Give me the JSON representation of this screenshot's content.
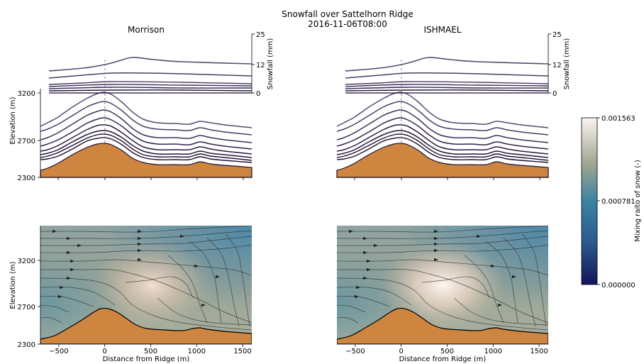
{
  "figure": {
    "title_line1": "Snowfall over Sattelhorn Ridge",
    "title_line2": "2016-11-06T08:00"
  },
  "colors": {
    "terrain": "#cd853f",
    "line": "#3d2a5c",
    "line_light": "#5a4a78",
    "low": "#131459",
    "mid": "#3b83a3",
    "high": "#fcf3ee"
  },
  "colorbar": {
    "label": "Mixing raito of snow (-)",
    "ticks": [
      "0.001563",
      "0.000781",
      "0.000000"
    ],
    "range": [
      0.0,
      0.001563
    ]
  },
  "chart_data": [
    {
      "type": "line",
      "panel": "Morrison contour",
      "title": "Morrison",
      "ylabel": "Elevation (m)",
      "xlim": [
        -700,
        1600
      ],
      "ylim": [
        2300,
        3800
      ],
      "yticks": [
        "3200",
        "2700",
        "2300"
      ],
      "snowfall": {
        "label": "Snowfall (mm)",
        "ticks": [
          "25",
          "12",
          "0"
        ],
        "range": [
          0,
          25
        ]
      }
    },
    {
      "type": "line",
      "panel": "ISHMAEL contour",
      "title": "ISHMAEL",
      "xlim": [
        -700,
        1600
      ],
      "ylim": [
        2300,
        3800
      ],
      "snowfall": {
        "label": "Snowfall (mm)",
        "ticks": [
          "25",
          "12",
          "0"
        ],
        "range": [
          0,
          25
        ]
      }
    },
    {
      "type": "heatmap",
      "panel": "Morrison streamlines",
      "ylabel": "Elevation (m)",
      "xlabel": "Distance from Ridge (m)",
      "xticks": [
        "−500",
        "0",
        "500",
        "1000",
        "1500"
      ],
      "yticks": [
        "3200",
        "2700",
        "2300"
      ],
      "xlim": [
        -700,
        1600
      ],
      "ylim": [
        2300,
        3800
      ]
    },
    {
      "type": "heatmap",
      "panel": "ISHMAEL streamlines",
      "xlabel": "Distance from Ridge (m)",
      "xticks": [
        "−500",
        "0",
        "500",
        "1000",
        "1500"
      ],
      "xlim": [
        -700,
        1600
      ],
      "ylim": [
        2300,
        3800
      ]
    }
  ]
}
